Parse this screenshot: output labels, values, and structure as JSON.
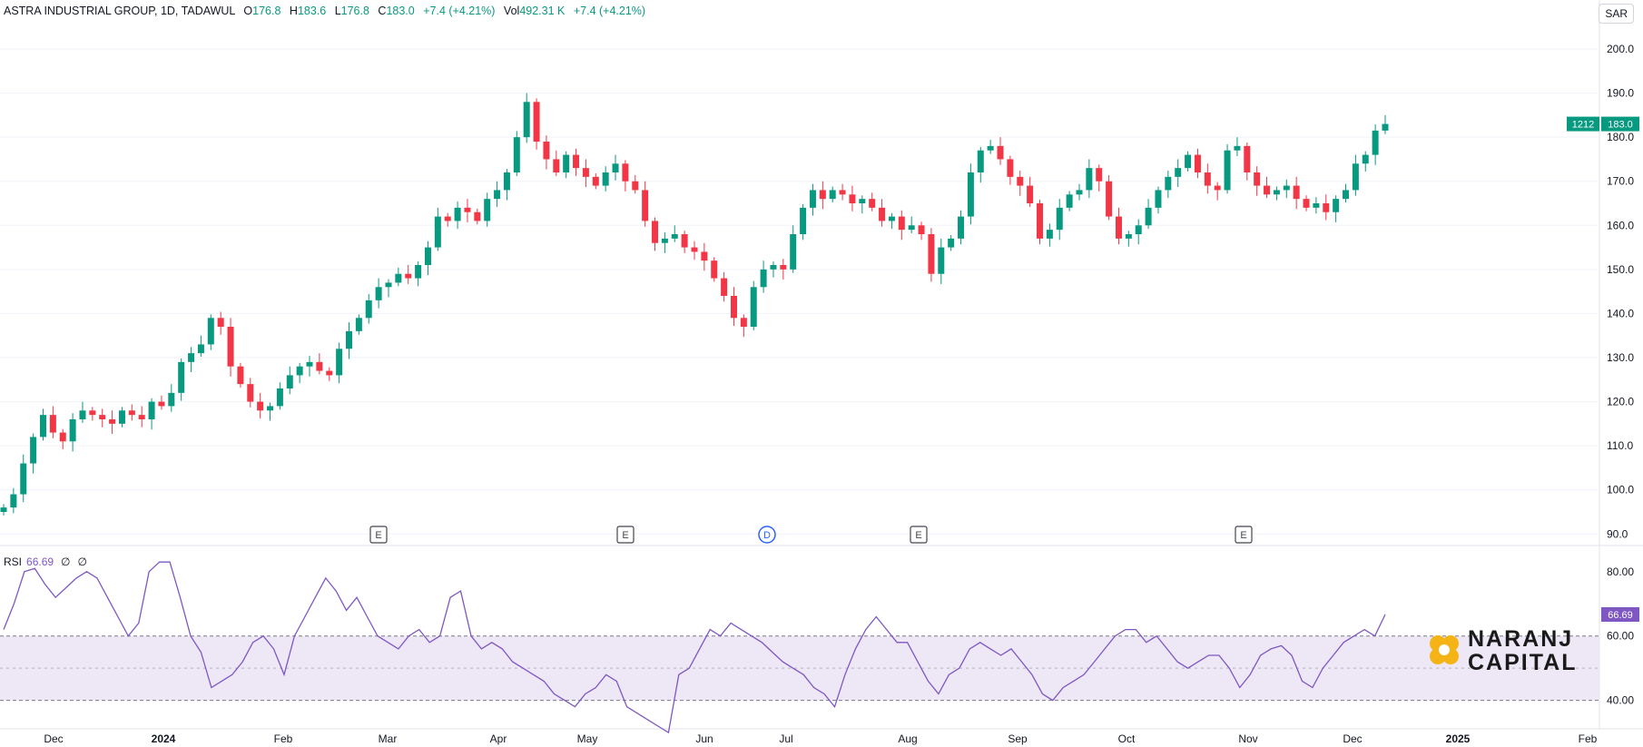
{
  "header": {
    "symbol": "ASTRA INDUSTRIAL GROUP, 1D, TADAWUL",
    "o_label": "O",
    "o": "176.8",
    "h_label": "H",
    "h": "183.6",
    "l_label": "L",
    "l": "176.8",
    "c_label": "C",
    "c": "183.0",
    "chg": "+7.4 (+4.21%)",
    "vol_label": "Vol",
    "vol": "492.31 K",
    "vol_chg": "+7.4 (+4.21%)"
  },
  "currency": "SAR",
  "rsi_header": {
    "label": "RSI",
    "value": "66.69",
    "z1": "∅",
    "z2": "∅"
  },
  "logo": {
    "line1": "NARANJ",
    "line2": "CAPITAL"
  },
  "colors": {
    "up": "#089981",
    "down": "#f23645",
    "rsi": "#7e57c2",
    "rsi_band": "#ede7f6",
    "grid": "#f0f3fa"
  },
  "chart_data": {
    "type": "candlestick",
    "price_axis": {
      "ticks": [
        "200.0",
        "190.0",
        "180.0",
        "170.0",
        "160.0",
        "150.0",
        "140.0",
        "130.0",
        "120.0",
        "110.0",
        "100.0",
        "90.0"
      ],
      "ylim": [
        88,
        207
      ]
    },
    "time_axis": {
      "ticks": [
        "Dec",
        "2024",
        "Feb",
        "Mar",
        "Apr",
        "May",
        "Jun",
        "Jul",
        "Aug",
        "Sep",
        "Oct",
        "Nov",
        "Dec",
        "2025",
        "Feb"
      ]
    },
    "price_label": {
      "volume": "1212",
      "last": "183.0"
    },
    "rsi_label": "66.69",
    "markers": [
      "E",
      "E",
      "D",
      "E",
      "E"
    ],
    "close_path": [
      96,
      99,
      106,
      112,
      117,
      113,
      111,
      116,
      118,
      117,
      116,
      115,
      118,
      117,
      116,
      120,
      119,
      122,
      129,
      131,
      133,
      139,
      137,
      128,
      124,
      120,
      118,
      119,
      123,
      126,
      128,
      129,
      127,
      126,
      132,
      136,
      139,
      143,
      146,
      147,
      149,
      148,
      151,
      155,
      162,
      161,
      164,
      163,
      161,
      166,
      168,
      172,
      180,
      188,
      179,
      175,
      172,
      176,
      173,
      171,
      169,
      172,
      174,
      170,
      168,
      161,
      156,
      157,
      158,
      155,
      154,
      152,
      148,
      144,
      139,
      137,
      146,
      150,
      151,
      150,
      158,
      164,
      168,
      166,
      168,
      167,
      165,
      166,
      164,
      161,
      162,
      159,
      160,
      158,
      149,
      155,
      157,
      162,
      172,
      177,
      178,
      175,
      171,
      169,
      165,
      157,
      159,
      164,
      167,
      168,
      173,
      170,
      162,
      157,
      158,
      160,
      164,
      168,
      171,
      173,
      176,
      172,
      169,
      168,
      177,
      178,
      172,
      169,
      167,
      168,
      169,
      166,
      164,
      165,
      163,
      166,
      168,
      174,
      176,
      181.5,
      183
    ],
    "rsi_axis": {
      "ticks": [
        "80.00",
        "60.00",
        "40.00"
      ],
      "upper": 60,
      "lower": 40,
      "ylim": [
        32,
        87
      ]
    },
    "rsi_path": [
      62,
      70,
      80,
      81,
      76,
      72,
      75,
      78,
      80,
      78,
      72,
      66,
      60,
      64,
      80,
      83,
      83,
      72,
      60,
      55,
      44,
      46,
      48,
      52,
      58,
      60,
      56,
      48,
      60,
      66,
      72,
      78,
      74,
      68,
      72,
      66,
      60,
      58,
      56,
      60,
      62,
      58,
      60,
      72,
      74,
      60,
      56,
      58,
      56,
      52,
      50,
      48,
      46,
      42,
      40,
      38,
      42,
      44,
      48,
      46,
      38,
      36,
      34,
      32,
      30,
      48,
      50,
      56,
      62,
      60,
      64,
      62,
      60,
      58,
      55,
      52,
      50,
      48,
      44,
      42,
      38,
      48,
      56,
      62,
      66,
      62,
      58,
      58,
      52,
      46,
      42,
      48,
      50,
      56,
      58,
      56,
      54,
      56,
      52,
      48,
      42,
      40,
      44,
      46,
      48,
      52,
      56,
      60,
      62,
      62,
      58,
      60,
      56,
      52,
      50,
      52,
      54,
      54,
      50,
      44,
      48,
      54,
      56,
      57,
      54,
      46,
      44,
      50,
      54,
      58,
      60,
      62,
      60,
      66.69
    ]
  }
}
